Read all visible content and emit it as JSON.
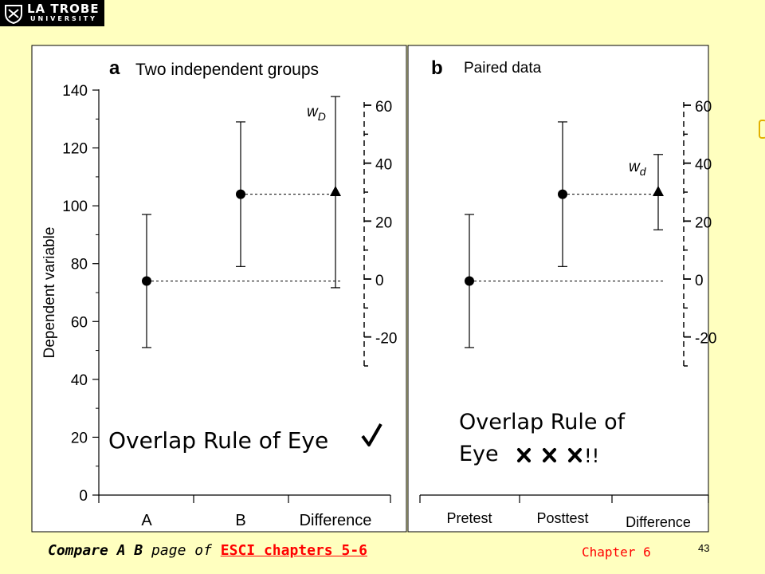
{
  "logo": {
    "line1": "LA TROBE",
    "line2": "UNIVERSITY"
  },
  "footer": {
    "prefix_bold": "Compare A B",
    "mid": " page of ",
    "link": "ESCI chapters 5-6",
    "chapter": "Chapter 6",
    "page_number": "43"
  },
  "chart_data": [
    {
      "type": "scatter",
      "panel_letter": "a",
      "title": "Two independent groups",
      "ylabel": "Dependent variable",
      "ylim": [
        0,
        140
      ],
      "y_ticks": [
        "0",
        "20",
        "40",
        "60",
        "80",
        "100",
        "120",
        "140"
      ],
      "categories": [
        "A",
        "B",
        "Difference"
      ],
      "right_axis": {
        "ticks": [
          "-20",
          "0",
          "20",
          "40",
          "60"
        ],
        "range": [
          -30,
          60
        ]
      },
      "points": [
        {
          "category": "A",
          "mean": 74,
          "ci": [
            51,
            97
          ],
          "marker": "circle"
        },
        {
          "category": "B",
          "mean": 104,
          "ci": [
            79,
            129
          ],
          "marker": "circle"
        }
      ],
      "difference": {
        "mean": 30,
        "ci": [
          -3,
          63
        ],
        "marker": "triangle",
        "label": "w",
        "label_sub": "D"
      },
      "annotation": "Overlap Rule of Eye",
      "annotation_symbol": "check"
    },
    {
      "type": "scatter",
      "panel_letter": "b",
      "title": "Paired data",
      "ylim": [
        0,
        140
      ],
      "categories": [
        "Pretest",
        "Posttest",
        "Difference"
      ],
      "right_axis": {
        "ticks": [
          "-20",
          "0",
          "20",
          "40",
          "60"
        ],
        "range": [
          -30,
          60
        ]
      },
      "points": [
        {
          "category": "Pretest",
          "mean": 74,
          "ci": [
            51,
            97
          ],
          "marker": "circle"
        },
        {
          "category": "Posttest",
          "mean": 104,
          "ci": [
            79,
            129
          ],
          "marker": "circle"
        }
      ],
      "difference": {
        "mean": 30,
        "ci": [
          17,
          43
        ],
        "marker": "triangle",
        "label": "w",
        "label_sub": "d"
      },
      "annotation_line1": "Overlap Rule of",
      "annotation_line2": "Eye",
      "annotation_marks": "x x x",
      "annotation_suffix": "!!"
    }
  ],
  "colors": {
    "background": "#FFFFBF",
    "plot_bg": "#FFFFFF",
    "accent": "#FF0000"
  }
}
